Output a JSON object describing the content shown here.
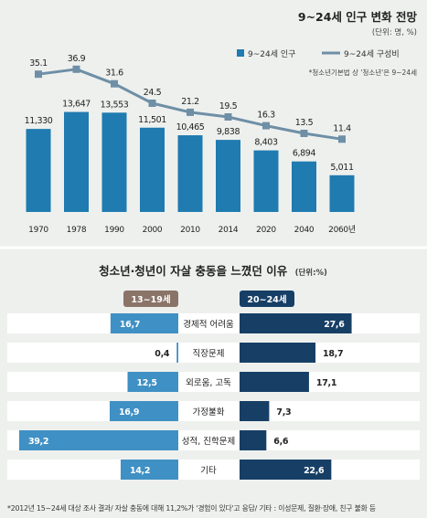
{
  "colors": {
    "bar_top": "#1f7bb0",
    "line": "#6e8fa6",
    "left_bar": "#3f90c4",
    "right_bar": "#173f66",
    "left_header": "#8a7468",
    "right_header": "#173f66",
    "row_bg": "#ffffff"
  },
  "chart_data": [
    {
      "type": "bar",
      "title": "9~24세 인구 변화 전망",
      "unit": "(단위: 명, %)",
      "note": "*청소년기본법 상 '청소년'은 9~24세",
      "categories": [
        "1970",
        "1978",
        "1990",
        "2000",
        "2010",
        "2014",
        "2020",
        "2040",
        "2060년"
      ],
      "series": [
        {
          "name": "9~24세 인구",
          "type": "bar",
          "values": [
            11330,
            13647,
            13553,
            11501,
            10465,
            9838,
            8403,
            6894,
            5011
          ],
          "labels": [
            "11,330",
            "13,647",
            "13,553",
            "11,501",
            "10,465",
            "9,838",
            "8,403",
            "6,894",
            "5,011"
          ]
        },
        {
          "name": "9~24세 구성비",
          "type": "line",
          "values": [
            35.1,
            36.9,
            31.6,
            24.5,
            21.2,
            19.5,
            16.3,
            13.5,
            11.4
          ],
          "labels": [
            "35.1",
            "36.9",
            "31.6",
            "24.5",
            "21.2",
            "19.5",
            "16.3",
            "13.5",
            "11.4"
          ]
        }
      ]
    },
    {
      "type": "bar",
      "orientation": "horizontal-butterfly",
      "title": "청소년·청년이 자살 충동을 느꼈던 이유",
      "unit": "(단위:%)",
      "categories": [
        "경제적 어려움",
        "직장문제",
        "외로움, 고독",
        "가정불화",
        "성적, 진학문제",
        "기타"
      ],
      "series": [
        {
          "name": "13~19세",
          "values": [
            16.7,
            0.4,
            12.5,
            16.9,
            39.2,
            14.2
          ],
          "labels": [
            "16,7",
            "0,4",
            "12,5",
            "16,9",
            "39,2",
            "14,2"
          ]
        },
        {
          "name": "20~24세",
          "values": [
            27.6,
            18.7,
            17.1,
            7.3,
            6.6,
            22.6
          ],
          "labels": [
            "27,6",
            "18,7",
            "17,1",
            "7,3",
            "6,6",
            "22,6"
          ]
        }
      ],
      "footnote": "*2012년 15~24세 대상 조사 결과/ 자살 충동에 대해 11,2%가 '경험이 있다'고 응답/ 기타 : 이성문제, 질환·장애, 친구 불화 등"
    }
  ]
}
